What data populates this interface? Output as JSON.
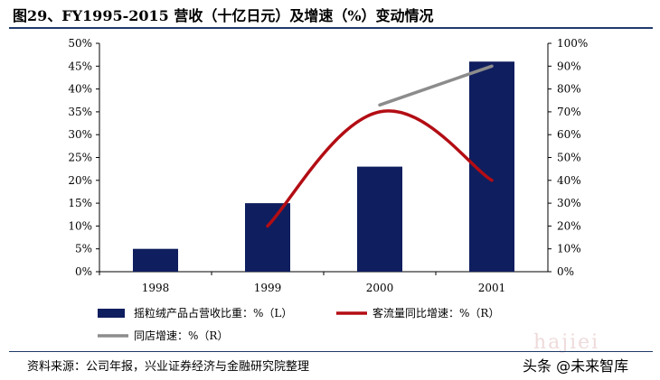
{
  "header": {
    "title": "图29、FY1995-2015 营收（十亿日元）及增速（%）变动情况"
  },
  "footer": {
    "source": "资料来源：公司年报，兴业证券经济与金融研究院整理",
    "watermark": "头条 @未来智库",
    "ghost_text": "hajiei"
  },
  "colors": {
    "bar": "#0f1e5e",
    "line_red": "#b30d14",
    "line_gray": "#8c8c8c",
    "axis": "#000000"
  },
  "chart_data": {
    "type": "bar",
    "categories": [
      "1998",
      "1999",
      "2000",
      "2001"
    ],
    "left_axis": {
      "ylim": [
        0,
        50
      ],
      "ticks": [
        "0%",
        "5%",
        "10%",
        "15%",
        "20%",
        "25%",
        "30%",
        "35%",
        "40%",
        "45%",
        "50%"
      ]
    },
    "right_axis": {
      "ylim": [
        0,
        100
      ],
      "ticks": [
        "0%",
        "10%",
        "20%",
        "30%",
        "40%",
        "50%",
        "60%",
        "70%",
        "80%",
        "90%",
        "100%"
      ]
    },
    "series": [
      {
        "name": "摇粒绒产品占营收比重：%（L）",
        "type": "bar",
        "axis": "left",
        "color": "#0f1e5e",
        "values": [
          5,
          15,
          23,
          46
        ]
      },
      {
        "name": "客流量同比增速：%（R）",
        "type": "line",
        "axis": "right",
        "color": "#b30d14",
        "smooth": true,
        "values": [
          null,
          20,
          70,
          40
        ]
      },
      {
        "name": "同店增速：%（R）",
        "type": "line",
        "axis": "right",
        "color": "#8c8c8c",
        "values": [
          null,
          null,
          73,
          90
        ]
      }
    ],
    "grid": false,
    "legend_position": "bottom"
  }
}
